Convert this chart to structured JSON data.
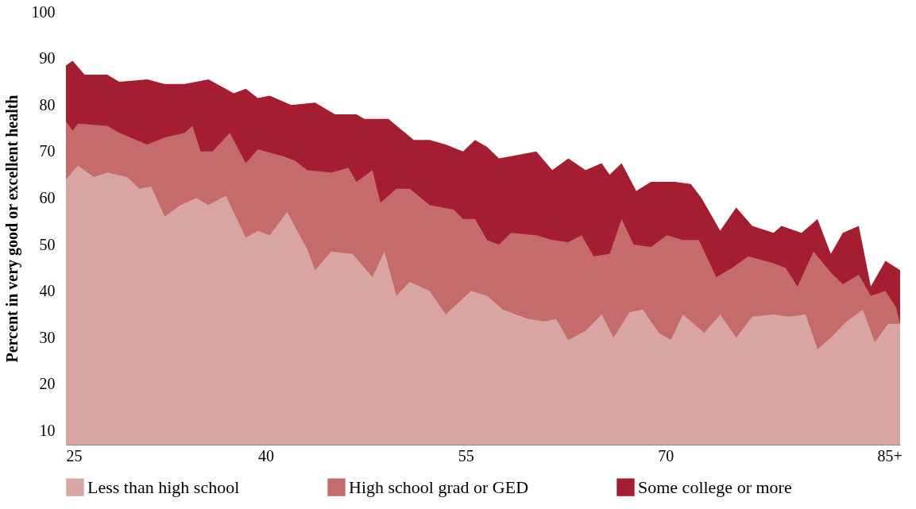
{
  "chart_data": {
    "type": "area",
    "ylabel": "Percent in very good or excellent health",
    "xlim": [
      25,
      87.6
    ],
    "ylim": [
      7,
      100
    ],
    "xticks": [
      25,
      40,
      55,
      70,
      {
        "value": 86.8,
        "label": "85+"
      }
    ],
    "yticks": [
      10,
      20,
      30,
      40,
      50,
      60,
      70,
      80,
      90,
      100
    ],
    "grid": false,
    "legend": "bottom",
    "series": [
      {
        "name": "Less than high school",
        "color": "#d9a5a3",
        "x": [
          25.0,
          25.9,
          27.1,
          28.1,
          29.6,
          30.5,
          31.4,
          32.4,
          33.6,
          34.8,
          35.7,
          37.0,
          38.5,
          39.4,
          40.3,
          41.6,
          43.1,
          43.7,
          44.9,
          46.5,
          48.0,
          48.9,
          49.8,
          50.8,
          52.3,
          53.5,
          55.4,
          56.6,
          57.8,
          59.7,
          60.9,
          61.8,
          62.7,
          64.0,
          65.2,
          66.1,
          67.3,
          68.3,
          69.5,
          70.4,
          71.3,
          72.9,
          74.1,
          75.3,
          76.5,
          78.1,
          79.3,
          80.5,
          81.4,
          82.4,
          83.6,
          84.8,
          85.7,
          86.7,
          87.6
        ],
        "values": [
          64,
          67,
          64.5,
          65.5,
          64.5,
          62,
          62.5,
          56,
          58.5,
          60,
          58.5,
          60.5,
          51.5,
          53,
          52,
          57,
          49,
          44.5,
          48.5,
          48,
          43,
          48.5,
          39,
          42,
          40,
          35,
          40,
          39,
          36,
          34,
          33.5,
          34,
          29.5,
          31.5,
          35,
          30,
          35.5,
          36,
          31,
          29.5,
          35,
          31,
          35,
          30,
          34.5,
          35,
          34.5,
          35,
          27.5,
          30,
          33.5,
          36,
          29,
          33,
          33
        ]
      },
      {
        "name": "High school grad or GED",
        "color": "#c56b69",
        "x": [
          25.0,
          25.5,
          25.9,
          28.1,
          29.0,
          31.1,
          32.4,
          33.9,
          34.5,
          35.1,
          36.0,
          37.3,
          38.5,
          39.4,
          41.3,
          42.2,
          43.1,
          44.9,
          46.2,
          46.8,
          48.0,
          48.6,
          49.8,
          50.8,
          52.3,
          54.1,
          54.8,
          55.7,
          56.6,
          57.5,
          58.4,
          60.3,
          61.5,
          62.7,
          63.7,
          64.6,
          65.8,
          66.7,
          67.6,
          68.9,
          70.1,
          71.3,
          72.5,
          73.8,
          75.0,
          76.2,
          78.1,
          79.0,
          79.9,
          81.1,
          82.4,
          83.3,
          84.5,
          85.4,
          86.5,
          87.3,
          87.6
        ],
        "values": [
          76.5,
          74.5,
          76,
          75.5,
          74,
          71.5,
          73,
          74,
          75.5,
          70,
          70,
          74,
          67.5,
          70.5,
          69,
          68,
          66,
          65.5,
          66.5,
          63.5,
          66,
          59,
          62,
          62,
          58.5,
          57.5,
          55.5,
          55.5,
          51,
          50,
          52.5,
          52,
          51,
          50.5,
          52,
          47.5,
          48,
          55.5,
          50,
          49.5,
          52,
          51,
          51,
          43,
          45,
          47.5,
          46,
          45,
          41,
          48.5,
          44,
          41.5,
          43.5,
          39,
          40,
          36.5,
          33
        ]
      },
      {
        "name": "Some college or more",
        "color": "#a51d31",
        "x": [
          25.0,
          25.5,
          26.4,
          28.1,
          29.0,
          31.1,
          32.4,
          33.9,
          35.7,
          37.6,
          38.5,
          39.4,
          40.3,
          41.9,
          43.7,
          45.2,
          46.8,
          47.4,
          49.2,
          51.1,
          52.3,
          53.5,
          54.8,
          55.7,
          56.6,
          57.5,
          60.3,
          61.5,
          62.7,
          64.0,
          65.2,
          65.8,
          66.7,
          67.8,
          68.9,
          70.7,
          71.9,
          72.7,
          74.1,
          75.3,
          76.5,
          78.1,
          78.7,
          80.2,
          81.4,
          82.4,
          83.3,
          84.5,
          85.4,
          86.5,
          87.6
        ],
        "values": [
          88.5,
          89.5,
          86.5,
          86.5,
          85,
          85.5,
          84.5,
          84.5,
          85.5,
          82.5,
          83.5,
          81.5,
          82,
          80,
          80.5,
          78,
          78,
          77,
          77,
          72.5,
          72.5,
          71.5,
          70,
          72.5,
          71,
          68.5,
          70,
          66,
          68.5,
          66,
          67.5,
          65,
          67.5,
          61.5,
          63.5,
          63.5,
          63,
          60,
          53,
          58,
          54,
          52.5,
          54,
          52.5,
          55.5,
          48,
          52.5,
          54,
          41,
          46.5,
          44.5
        ]
      }
    ]
  }
}
